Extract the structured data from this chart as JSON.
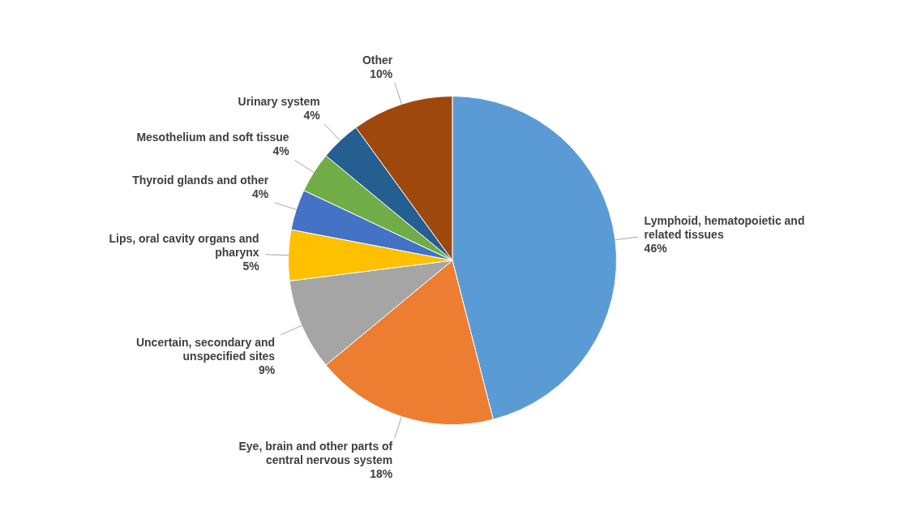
{
  "chart_data": {
    "type": "pie",
    "categories": [
      "Lymphoid, hematopoietic and related tissues",
      "Eye, brain and other parts of central nervous system",
      "Uncertain, secondary and unspecified sites",
      "Lips, oral cavity organs and pharynx",
      "Thyroid glands and other",
      "Mesothelium and soft tissue",
      "Urinary system",
      "Other"
    ],
    "values": [
      46,
      18,
      9,
      5,
      4,
      4,
      4,
      10
    ],
    "value_labels": [
      "46%",
      "18%",
      "9%",
      "5%",
      "4%",
      "4%",
      "4%",
      "10%"
    ],
    "colors": [
      "#5b9bd5",
      "#ed7d31",
      "#a5a5a5",
      "#ffc000",
      "#4472c4",
      "#70ad47",
      "#255e91",
      "#9e480e"
    ],
    "legend": false
  }
}
